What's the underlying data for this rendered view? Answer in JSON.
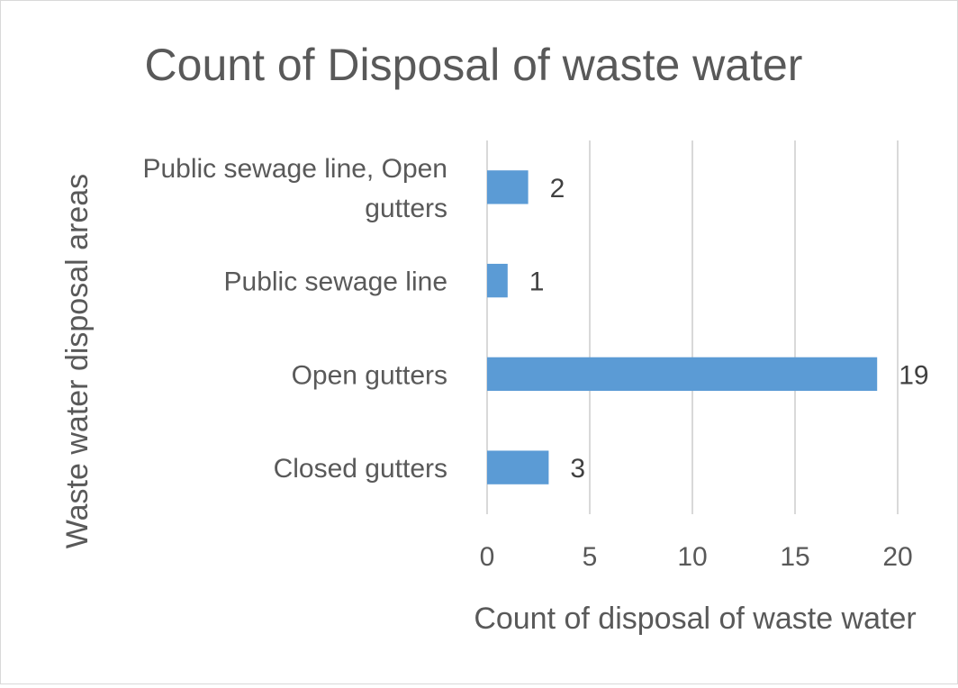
{
  "chart_data": {
    "type": "bar",
    "orientation": "horizontal",
    "title": "Count of Disposal of waste water",
    "xlabel": "Count of disposal of waste water",
    "ylabel": "Waste water disposal areas",
    "categories": [
      [
        "Public sewage line, Open",
        "gutters"
      ],
      [
        "Public sewage line"
      ],
      [
        "Open gutters"
      ],
      [
        "Closed gutters"
      ]
    ],
    "values": [
      2,
      1,
      19,
      3
    ],
    "xlim": [
      0,
      20
    ],
    "xticks": [
      0,
      5,
      10,
      15,
      20
    ],
    "grid": "vertical",
    "legend": "none",
    "bar_color": "#5b9bd5",
    "text_color": "#595959",
    "grid_color": "#d9d9d9"
  }
}
